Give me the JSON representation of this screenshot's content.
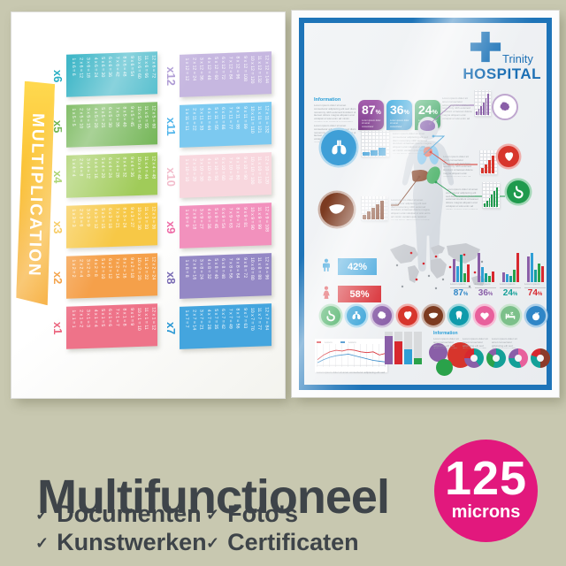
{
  "colors": {
    "background": "#c8c8b0",
    "caption_text": "#3e4449",
    "frame_blue": "#1e74b8",
    "hospital_blue": "#1c6fb4"
  },
  "left_poster": {
    "title": "MULTIPLICATION",
    "tables": [
      {
        "label": "x6",
        "block": "#41b7c8",
        "labelColor": "#27aec3",
        "rows": [
          "1 x 6 = 6",
          "2 x 6 = 12",
          "3 x 6 = 18",
          "4 x 6 = 24",
          "5 x 6 = 30",
          "6 x 6 = 36",
          "7 x 6 = 42",
          "8 x 6 = 48",
          "9 x 6 = 54",
          "10 x 6 = 60",
          "11 x 6 = 66",
          "12 x 6 = 72"
        ]
      },
      {
        "label": "x5",
        "block": "#74b657",
        "labelColor": "#5caa3c",
        "rows": [
          "1 x 5 = 5",
          "2 x 5 = 10",
          "3 x 5 = 15",
          "4 x 5 = 20",
          "5 x 5 = 25",
          "6 x 5 = 30",
          "7 x 5 = 35",
          "8 x 5 = 40",
          "9 x 5 = 45",
          "10 x 5 = 50",
          "11 x 5 = 55",
          "12 x 5 = 60"
        ]
      },
      {
        "label": "x4",
        "block": "#a0cb59",
        "labelColor": "#8cc43f",
        "rows": [
          "1 x 4 = 4",
          "2 x 4 = 8",
          "3 x 4 = 12",
          "4 x 4 = 16",
          "5 x 4 = 20",
          "6 x 4 = 24",
          "7 x 4 = 28",
          "8 x 4 = 32",
          "9 x 4 = 36",
          "10 x 4 = 40",
          "11 x 4 = 44",
          "12 x 4 = 48"
        ]
      },
      {
        "label": "x3",
        "block": "#f7c846",
        "labelColor": "#f3b41c",
        "rows": [
          "1 x 3 = 3",
          "2 x 3 = 6",
          "3 x 3 = 9",
          "4 x 3 = 12",
          "5 x 3 = 15",
          "6 x 3 = 18",
          "7 x 3 = 21",
          "8 x 3 = 24",
          "9 x 3 = 27",
          "10 x 3 = 30",
          "11 x 3 = 33",
          "12 x 3 = 36"
        ]
      },
      {
        "label": "x2",
        "block": "#f5a04a",
        "labelColor": "#f18d20",
        "rows": [
          "1 x 2 = 2",
          "2 x 2 = 4",
          "3 x 2 = 6",
          "4 x 2 = 8",
          "5 x 2 = 10",
          "6 x 2 = 12",
          "7 x 2 = 14",
          "8 x 2 = 16",
          "9 x 2 = 18",
          "10 x 2 = 20",
          "11 x 2 = 22",
          "12 x 2 = 24"
        ]
      },
      {
        "label": "x1",
        "block": "#ee7389",
        "labelColor": "#e95672",
        "rows": [
          "1 x 1 = 1",
          "2 x 1 = 2",
          "3 x 1 = 3",
          "4 x 1 = 4",
          "5 x 1 = 5",
          "6 x 1 = 6",
          "7 x 1 = 7",
          "8 x 1 = 8",
          "9 x 1 = 9",
          "10 x 1 = 10",
          "11 x 1 = 11",
          "12 x 1 = 12"
        ]
      },
      {
        "label": "x12",
        "block": "#c6b7e0",
        "labelColor": "#a893d1",
        "rows": [
          "1 x 12 = 12",
          "2 x 12 = 24",
          "3 x 12 = 36",
          "4 x 12 = 48",
          "5 x 12 = 60",
          "6 x 12 = 72",
          "7 x 12 = 84",
          "8 x 12 = 96",
          "9 x 12 = 108",
          "10 x 12 = 120",
          "11 x 12 = 132",
          "12 x 12 = 144"
        ]
      },
      {
        "label": "x11",
        "block": "#7cc9f0",
        "labelColor": "#4eb4ea",
        "rows": [
          "1 x 11 = 11",
          "2 x 11 = 22",
          "3 x 11 = 33",
          "4 x 11 = 44",
          "5 x 11 = 55",
          "6 x 11 = 66",
          "7 x 11 = 77",
          "8 x 11 = 88",
          "9 x 11 = 99",
          "10 x 11 = 110",
          "11 x 11 = 121",
          "12 x 11 = 132"
        ]
      },
      {
        "label": "x10",
        "block": "#f8d7de",
        "labelColor": "#f2bccb",
        "rows": [
          "1 x 10 = 10",
          "2 x 10 = 20",
          "3 x 10 = 30",
          "4 x 10 = 40",
          "5 x 10 = 50",
          "6 x 10 = 60",
          "7 x 10 = 70",
          "8 x 10 = 80",
          "9 x 10 = 90",
          "10 x 10 = 100",
          "11 x 10 = 110",
          "12 x 10 = 120"
        ]
      },
      {
        "label": "x9",
        "block": "#f291bd",
        "labelColor": "#ee6ba6",
        "rows": [
          "1 x 9 = 9",
          "2 x 9 = 18",
          "3 x 9 = 27",
          "4 x 9 = 36",
          "5 x 9 = 45",
          "6 x 9 = 54",
          "7 x 9 = 63",
          "8 x 9 = 72",
          "9 x 9 = 81",
          "10 x 9 = 90",
          "11 x 9 = 99",
          "12 x 9 = 108"
        ]
      },
      {
        "label": "x8",
        "block": "#9488c5",
        "labelColor": "#7a6cb4",
        "rows": [
          "1 x 8 = 8",
          "2 x 8 = 16",
          "3 x 8 = 24",
          "4 x 8 = 32",
          "5 x 8 = 40",
          "6 x 8 = 48",
          "7 x 8 = 56",
          "8 x 8 = 64",
          "9 x 8 = 72",
          "10 x 8 = 80",
          "11 x 8 = 88",
          "12 x 8 = 96"
        ]
      },
      {
        "label": "x7",
        "block": "#44a5de",
        "labelColor": "#2495d3",
        "rows": [
          "1 x 7 = 7",
          "2 x 7 = 14",
          "3 x 7 = 21",
          "4 x 7 = 28",
          "5 x 7 = 35",
          "6 x 7 = 42",
          "7 x 7 = 49",
          "8 x 7 = 56",
          "9 x 7 = 63",
          "10 x 7 = 70",
          "11 x 7 = 77",
          "12 x 7 = 84"
        ]
      }
    ]
  },
  "right_poster": {
    "brand": {
      "line1": "Trinity",
      "line2": "HOSPITAL"
    },
    "info": {
      "heading": "Information"
    },
    "info_small_heading": "Information",
    "placeholder": "Lorem ipsum dolor sit amet consectetur adipiscing elit sed diam nonummy nibh euismod tincidunt ut laoreet dolore magna aliquam erat volutpat ut wisi enim ad minim veniam quis nostrud exerci tation ullamcorper suscipit lobortis nisl ut aliquip ex ea commodo consequat duis autem vel eum iriure dolor in hendrerit",
    "top_badges": [
      {
        "value": "87",
        "unit": "%",
        "c1": "#a55fae",
        "c2": "#7c3d8b"
      },
      {
        "value": "36",
        "unit": "%",
        "c1": "#35a9e0",
        "c2": "#1a82c2"
      },
      {
        "value": "24",
        "unit": "%",
        "c1": "#38a961",
        "c2": "#1b8a45"
      }
    ],
    "callouts": [
      {
        "id": "brain",
        "color": "#8a5fa8",
        "bars": [
          4,
          7,
          10,
          14,
          19,
          24
        ]
      },
      {
        "id": "lungs",
        "color": "#3f9fd7",
        "bars": [
          4,
          6,
          9
        ]
      },
      {
        "id": "heart",
        "color": "#d7352c",
        "bars": [
          6,
          10,
          15,
          20
        ]
      },
      {
        "id": "liver",
        "color": "#7c3b21",
        "bars": [
          5,
          9,
          13,
          17,
          21
        ]
      },
      {
        "id": "stomach",
        "color": "#1f9a4d",
        "bars": [
          4,
          7,
          10,
          14,
          18,
          22
        ]
      }
    ],
    "gender": [
      {
        "id": "male",
        "value": "42%",
        "color": "#36a0da"
      },
      {
        "id": "female",
        "value": "58%",
        "color": "#d7282f"
      }
    ],
    "bar_groups": [
      {
        "value": "87",
        "unit": "%",
        "color": "#2f86c7",
        "heights": [
          24,
          16,
          28,
          9,
          18
        ]
      },
      {
        "value": "36",
        "unit": "%",
        "color": "#8a5fa8",
        "heights": [
          30,
          15,
          9,
          6,
          11
        ]
      },
      {
        "value": "24",
        "unit": "%",
        "color": "#14a098",
        "heights": [
          10,
          8,
          6,
          13,
          30
        ]
      },
      {
        "value": "74",
        "unit": "%",
        "color": "#d7282f",
        "heights": [
          26,
          30,
          13,
          19,
          16
        ]
      }
    ],
    "bar_palette": [
      "#8a5fa8",
      "#2f9fd6",
      "#14a098",
      "#2aa24a",
      "#d7282f"
    ],
    "organ_icons": [
      {
        "icon": "stomach",
        "color": "#2aa24a"
      },
      {
        "icon": "lungs",
        "color": "#2f9fd6"
      },
      {
        "icon": "brain",
        "color": "#8a5fa8"
      },
      {
        "icon": "heart-organ",
        "color": "#d7352c"
      },
      {
        "icon": "liver",
        "color": "#7c3b21"
      },
      {
        "icon": "tooth",
        "color": "#0f9bab"
      },
      {
        "icon": "heart",
        "color": "#e8609c"
      },
      {
        "icon": "sleep",
        "color": "#7cc08a"
      },
      {
        "icon": "apple",
        "color": "#2f86c7"
      }
    ],
    "line_chart": {
      "red": [
        20,
        14,
        10,
        8,
        9,
        7,
        8,
        10,
        11,
        10,
        14,
        12
      ],
      "blue": [
        24,
        20,
        17,
        15,
        14,
        13,
        15,
        17,
        19,
        21,
        22,
        23
      ]
    },
    "mini_bars": [
      {
        "color": "#8a5fa8",
        "h": 32
      },
      {
        "color": "#d7282f",
        "h": 26
      },
      {
        "color": "#2f9fd6",
        "h": 17
      },
      {
        "color": "#2aa24a",
        "h": 7
      }
    ],
    "bubbles": [
      {
        "color": "#8a5fa8",
        "d": 21
      },
      {
        "color": "#d7352c",
        "d": 29
      },
      {
        "color": "#2aa24a",
        "d": 19
      }
    ],
    "donuts": [
      {
        "segments": [
          [
            "#14a098",
            40
          ],
          [
            "#8a5fa8",
            35
          ],
          [
            "#d7282f",
            25
          ]
        ]
      },
      {
        "segments": [
          [
            "#14a098",
            55
          ],
          [
            "#2aa24a",
            30
          ],
          [
            "#8a5fa8",
            15
          ]
        ]
      },
      {
        "segments": [
          [
            "#e8609c",
            45
          ],
          [
            "#14a098",
            30
          ],
          [
            "#8a5fa8",
            25
          ]
        ]
      },
      {
        "segments": [
          [
            "#8c3a2a",
            50
          ],
          [
            "#14a098",
            30
          ],
          [
            "#d7282f",
            20
          ]
        ]
      }
    ]
  },
  "caption": {
    "title": "Multifunctioneel",
    "check": "✓",
    "features": [
      "Documenten",
      "Kunstwerken",
      "Foto's",
      "Certificaten"
    ],
    "badge": {
      "value": "125",
      "unit": "microns",
      "color": "#e2187d"
    }
  }
}
